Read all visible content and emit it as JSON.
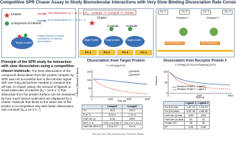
{
  "title": "Competitive SPR Chaser Assay to Study Biomolecular Interactions with Very Slow Binding Dissociation Rate Constant",
  "legend": {
    "chaser": "Chaser",
    "compound": "Compound of interest",
    "fast": "Fast dissociation (kₐ = 1e-3 s⁻¹)",
    "slow": "Slow dissociation (kₐ = 1e-6 s⁻¹)",
    "target": "Target protein",
    "note": "Chaser binds to reveal compound of interest dissociation"
  },
  "assay": {
    "kd_order": "Kₐ : compd1 >> compd2 >> chaser",
    "chaser": "Chaser",
    "compd1": "Compd1",
    "compd2": "Compd2",
    "targets": [
      "Target Protein",
      "Target protein",
      "Target protein"
    ],
    "flow_cells": [
      "FC 1",
      "FC 2",
      "FC 3",
      "FC 4"
    ]
  },
  "principle": {
    "heading": "Principle of the SPR study for interaction with slow dissociation using a competitive chaser-molecule.",
    "body": "The slow dissociation of the compound dissociation from the protein complex by SPR was not successful due to the intrinsic signal drift over long period time needed to measure the off-rate. In chaser assay, the amount of ligands or small molecules of interest (kₐ ≈ 1e-6 s⁻¹) that dissociate from the protein surface can be measured by how much bound molecules are displaced by a chaser molecule that binds to the same site of the protein in a competitive way with faster dissociation rate constant (kₐ ≥ 1e-3 s⁻¹)"
  },
  "plot1": {
    "title": "Dissociation from Target Protein",
    "equation": "Y=Y0*exp(-K*X)",
    "y_label": "% Bound (Relative to Blank)",
    "x_label": "Time (s)",
    "legend": [
      "Compd1",
      "Compd2"
    ],
    "yticks": [
      "0",
      "50",
      "100",
      "150"
    ],
    "xticks": [
      "0",
      "1000",
      "2000",
      "3000"
    ]
  },
  "table1": {
    "header": [
      "",
      "Compd1",
      "Compd2"
    ],
    "rows": [
      [
        "Y0",
        "99.8",
        "100.2"
      ],
      [
        "K (s⁻¹)",
        "6.2e-4",
        "1.1e-4"
      ],
      [
        "Half Life (s)",
        "1118",
        "6300"
      ],
      [
        "95% CI K",
        "5.8e-4 to 6.6e-4",
        "1.0e-4 to 1.2e-4"
      ],
      [
        "Half Life 95% CI",
        "0.5 to 0.7",
        "8 to 8"
      ]
    ]
  },
  "right": {
    "channels": [
      "Ch. 1",
      "Ch. 2",
      "Ch. 3",
      "Ch. 4"
    ],
    "antibody": "Anti-Receptor Y",
    "receptors": [
      "Receptor 1",
      "Receptor 2"
    ]
  },
  "plot2": {
    "title": "Dissociation from Receptor Protein 2",
    "equation": "Y=Y0*exp(-K1*X)+(Y0-Plat)*exp(-K2*X)",
    "y_label": "% Bound",
    "x_label": "Time (s)",
    "legend": [
      "Receptor Protein 1 - Ligand 1",
      "Receptor Protein 2 - Ligand 2"
    ],
    "yticks": [
      "0",
      "50",
      "100"
    ],
    "xticks": [
      "0",
      "2000",
      "4000"
    ]
  },
  "table2": {
    "header": [
      "",
      "Ligand 1",
      "Ligand 2"
    ],
    "rows": [
      [
        "Kd (1/s) fast",
        "1.4E-04",
        "2.1E-04"
      ],
      [
        "Kd (1/s) slow",
        "3.2E-06",
        "4.6E-06"
      ],
      [
        "Half Life (s) fast",
        "4950",
        "3300"
      ],
      [
        "Half Life (h) slow",
        "60",
        "42"
      ],
      [
        "Phase (%)",
        "28",
        "35"
      ],
      [
        "R²",
        "0.99",
        "0.98"
      ]
    ]
  },
  "footer": "Internal Use Only Medical and Scientific Affairs"
}
